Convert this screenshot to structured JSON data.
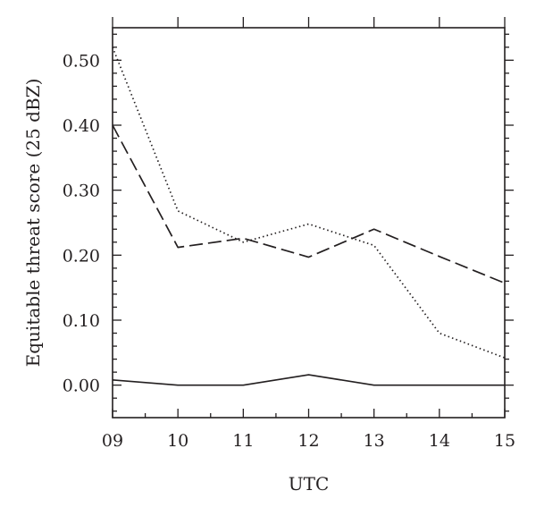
{
  "chart_data": {
    "type": "line",
    "xlabel": "UTC",
    "ylabel": "Equitable threat score (25 dBZ)",
    "x": [
      "09",
      "10",
      "11",
      "12",
      "13",
      "14",
      "15"
    ],
    "xlim": [
      9,
      15
    ],
    "ylim": [
      -0.05,
      0.55
    ],
    "yticks": [
      "0.00",
      "0.10",
      "0.20",
      "0.30",
      "0.40",
      "0.50"
    ],
    "ytick_values": [
      0.0,
      0.1,
      0.2,
      0.3,
      0.4,
      0.5
    ],
    "series": [
      {
        "style": "solid",
        "values": [
          0.008,
          0.0,
          0.0,
          0.016,
          0.0,
          0.0,
          0.0
        ]
      },
      {
        "style": "dashed",
        "values": [
          0.4,
          0.212,
          0.226,
          0.197,
          0.24,
          0.198,
          0.157
        ]
      },
      {
        "style": "dotted",
        "values": [
          0.52,
          0.268,
          0.22,
          0.248,
          0.215,
          0.08,
          0.042
        ]
      }
    ],
    "grid": false,
    "legend": "none",
    "line_color": "#231f20"
  }
}
